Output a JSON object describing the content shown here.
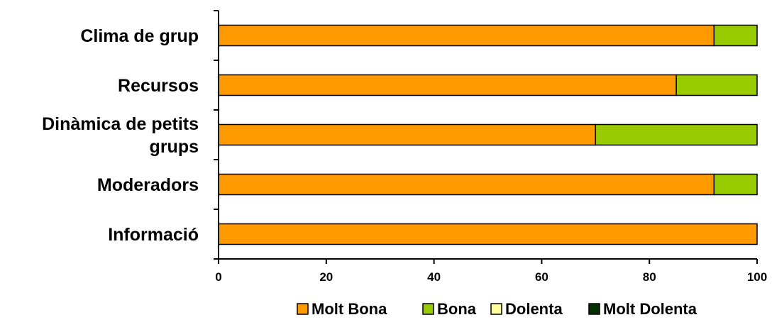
{
  "chart_data": {
    "type": "bar",
    "orientation": "horizontal",
    "stacked": true,
    "categories": [
      "Clima de grup",
      "Recursos",
      "Dinàmica de petits grups",
      "Moderadors",
      "Informació"
    ],
    "category_lines": [
      [
        "Clima de grup"
      ],
      [
        "Recursos"
      ],
      [
        "Dinàmica de petits",
        "grups"
      ],
      [
        "Moderadors"
      ],
      [
        "Informació"
      ]
    ],
    "series": [
      {
        "name": "Molt Bona",
        "color": "#ff9900",
        "values": [
          92,
          85,
          70,
          92,
          100
        ]
      },
      {
        "name": "Bona",
        "color": "#99cc00",
        "values": [
          8,
          15,
          30,
          8,
          0
        ]
      },
      {
        "name": "Dolenta",
        "color": "#ffff99",
        "values": [
          0,
          0,
          0,
          0,
          0
        ]
      },
      {
        "name": "Molt Dolenta",
        "color": "#003300",
        "values": [
          0,
          0,
          0,
          0,
          0
        ]
      }
    ],
    "xlim": [
      0,
      100
    ],
    "xticks": [
      "0",
      "20",
      "40",
      "60",
      "80",
      "100"
    ],
    "grid": false,
    "legend_position": "bottom"
  }
}
